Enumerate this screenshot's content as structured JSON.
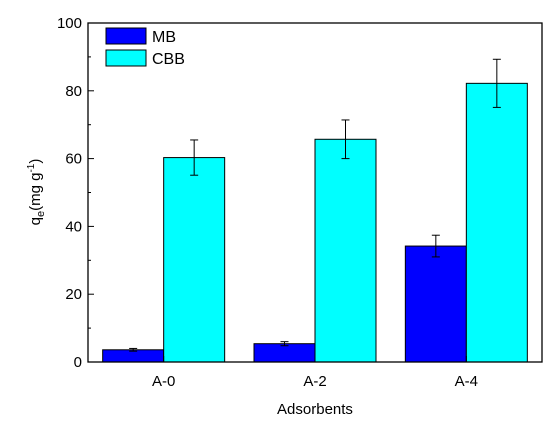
{
  "chart_data": {
    "type": "bar",
    "categories": [
      "A-0",
      "A-2",
      "A-4"
    ],
    "series": [
      {
        "name": "MB",
        "color": "#0000FF",
        "values": [
          3.6,
          5.4,
          34.2
        ],
        "errors": [
          0.4,
          0.6,
          3.2
        ]
      },
      {
        "name": "CBB",
        "color": "#00FFFF",
        "values": [
          60.3,
          65.7,
          82.2
        ],
        "errors": [
          5.2,
          5.7,
          7.1
        ]
      }
    ],
    "xlabel": "Adsorbents",
    "ylabel_main": "q",
    "ylabel_sub": "e",
    "ylabel_unit": "(mg g",
    "ylabel_sup": "-1",
    "ylabel_close": ")",
    "ylim": [
      0,
      100
    ],
    "yticks": [
      0,
      20,
      40,
      60,
      80,
      100
    ],
    "legend_position": "top-left",
    "grid": false
  }
}
